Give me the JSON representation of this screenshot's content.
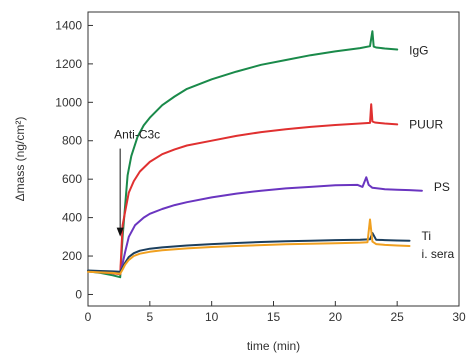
{
  "chart_data": {
    "type": "line",
    "xlabel": "time (min)",
    "ylabel": "Δmass (ng/cm²)",
    "xlim": [
      0,
      30
    ],
    "ylim": [
      -60,
      1470
    ],
    "xticks": [
      0,
      5,
      10,
      15,
      20,
      25,
      30
    ],
    "yticks": [
      0,
      200,
      400,
      600,
      800,
      1000,
      1200,
      1400
    ],
    "grid": false,
    "legend": "labels at right end of each series",
    "annotation": {
      "text": "Anti-C3c",
      "x": 2.6,
      "y": 780
    },
    "series": [
      {
        "name": "IgG",
        "color": "#1a8a4a",
        "label_y": 1270,
        "x": [
          0,
          1,
          2,
          2.6,
          2.8,
          3.0,
          3.2,
          3.5,
          4.0,
          4.5,
          5.0,
          6.0,
          7.0,
          8.0,
          10.0,
          12.0,
          14.0,
          16.0,
          18.0,
          20.0,
          22.0,
          22.8,
          23.0,
          23.1,
          23.3,
          24.0,
          25.0
        ],
        "values": [
          120,
          112,
          100,
          90,
          300,
          460,
          620,
          720,
          820,
          880,
          920,
          985,
          1030,
          1070,
          1120,
          1160,
          1195,
          1220,
          1245,
          1265,
          1282,
          1292,
          1370,
          1290,
          1285,
          1280,
          1275
        ]
      },
      {
        "name": "PUUR",
        "color": "#e03030",
        "label_y": 885,
        "x": [
          0,
          1,
          2,
          2.6,
          2.8,
          3.0,
          3.3,
          3.7,
          4.2,
          5.0,
          6.0,
          7.0,
          8.0,
          10.0,
          12.0,
          14.0,
          16.0,
          18.0,
          20.0,
          22.0,
          22.8,
          22.9,
          23.0,
          23.2,
          24.0,
          25.0
        ],
        "values": [
          120,
          115,
          110,
          105,
          360,
          430,
          530,
          590,
          640,
          690,
          730,
          755,
          775,
          800,
          825,
          845,
          860,
          872,
          882,
          890,
          893,
          990,
          900,
          895,
          890,
          885
        ]
      },
      {
        "name": "PS",
        "color": "#6a35c0",
        "label_y": 558,
        "x": [
          0,
          1,
          2,
          2.6,
          2.8,
          3.0,
          3.3,
          3.8,
          4.5,
          5.0,
          6.0,
          7.0,
          8.0,
          10.0,
          12.0,
          14.0,
          16.0,
          18.0,
          20.0,
          21.8,
          22.2,
          22.5,
          22.7,
          23.0,
          24.0,
          25.0,
          26.0,
          27.0
        ],
        "values": [
          120,
          118,
          115,
          110,
          160,
          220,
          300,
          360,
          400,
          420,
          445,
          465,
          480,
          505,
          525,
          540,
          552,
          560,
          568,
          570,
          560,
          610,
          570,
          555,
          548,
          545,
          543,
          540
        ]
      },
      {
        "name": "Ti",
        "color": "#1c3f5e",
        "label_y": 305,
        "x": [
          0,
          1,
          2,
          2.6,
          2.8,
          3.0,
          3.3,
          3.7,
          4.2,
          5.0,
          6.0,
          8.0,
          10.0,
          12.0,
          14.0,
          16.0,
          18.0,
          20.0,
          22.0,
          22.8,
          23.0,
          23.3,
          24.0,
          25.0,
          26.0
        ],
        "values": [
          125,
          122,
          120,
          118,
          140,
          165,
          195,
          215,
          228,
          238,
          245,
          255,
          262,
          268,
          273,
          277,
          280,
          283,
          285,
          287,
          320,
          285,
          283,
          281,
          280
        ]
      },
      {
        "name": "i. sera",
        "color": "#f0a020",
        "label_y": 210,
        "x": [
          0,
          1,
          2,
          2.6,
          2.8,
          3.0,
          3.3,
          3.7,
          4.2,
          5.0,
          6.0,
          8.0,
          10.0,
          12.0,
          14.0,
          16.0,
          18.0,
          20.0,
          22.0,
          22.6,
          22.8,
          23.0,
          23.3,
          24.0,
          25.0,
          26.0
        ],
        "values": [
          118,
          115,
          112,
          108,
          130,
          155,
          180,
          200,
          212,
          222,
          230,
          240,
          247,
          252,
          257,
          261,
          264,
          267,
          270,
          272,
          390,
          275,
          262,
          258,
          255,
          252
        ]
      }
    ]
  }
}
